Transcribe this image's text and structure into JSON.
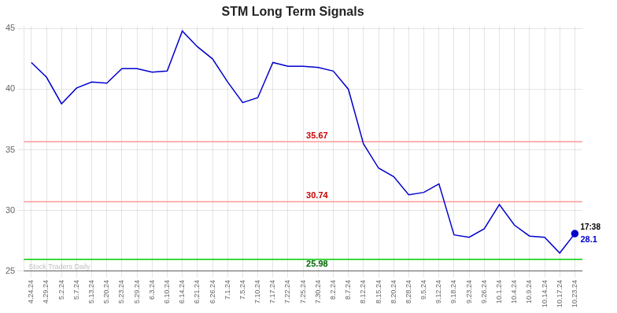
{
  "chart_data": {
    "type": "line",
    "title": "STM Long Term Signals",
    "categories": [
      "4.24.24",
      "4.29.24",
      "5.2.24",
      "5.7.24",
      "5.13.24",
      "5.20.24",
      "5.23.24",
      "5.29.24",
      "6.3.24",
      "6.10.24",
      "6.14.24",
      "6.21.24",
      "6.26.24",
      "7.1.24",
      "7.5.24",
      "7.10.24",
      "7.17.24",
      "7.22.24",
      "7.25.24",
      "7.30.24",
      "8.2.24",
      "8.7.24",
      "8.12.24",
      "8.15.24",
      "8.20.24",
      "8.28.24",
      "9.5.24",
      "9.12.24",
      "9.18.24",
      "9.23.24",
      "9.26.24",
      "10.1.24",
      "10.4.24",
      "10.9.24",
      "10.14.24",
      "10.17.24",
      "10.23.24"
    ],
    "values": [
      42.2,
      41.0,
      38.8,
      40.1,
      40.6,
      40.5,
      41.7,
      41.7,
      41.4,
      41.5,
      44.8,
      43.5,
      42.5,
      40.6,
      38.9,
      39.3,
      42.2,
      41.9,
      41.9,
      41.8,
      41.5,
      40.0,
      35.5,
      33.5,
      32.8,
      31.3,
      31.5,
      32.2,
      28.0,
      27.8,
      28.5,
      30.5,
      28.8,
      27.9,
      27.8,
      26.5,
      28.1
    ],
    "value_labels": [
      null,
      null,
      null,
      null,
      null,
      null,
      null,
      null,
      null,
      null,
      null,
      null,
      null,
      null,
      null,
      null,
      null,
      null,
      null,
      null,
      null,
      null,
      null,
      null,
      null,
      null,
      null,
      null,
      null,
      null,
      null,
      null,
      null,
      null,
      null,
      null,
      "28.1"
    ],
    "color": "#0000cc",
    "hlines": [
      {
        "value": 35.67,
        "label": "35.67",
        "color": "#ff9999",
        "label_color": "#cc0000"
      },
      {
        "value": 30.74,
        "label": "30.74",
        "color": "#ff9999",
        "label_color": "#cc0000"
      },
      {
        "value": 25.98,
        "label": "25.98",
        "color": "#00cc00",
        "label_color": "#006600"
      },
      {
        "value": 25,
        "color": "#000000"
      }
    ],
    "time_label": "17:38",
    "watermark": "Stock Traders Daily",
    "ylim": [
      25,
      45.2
    ],
    "yticks": [
      25,
      30,
      35,
      40,
      45
    ],
    "grid": true
  }
}
